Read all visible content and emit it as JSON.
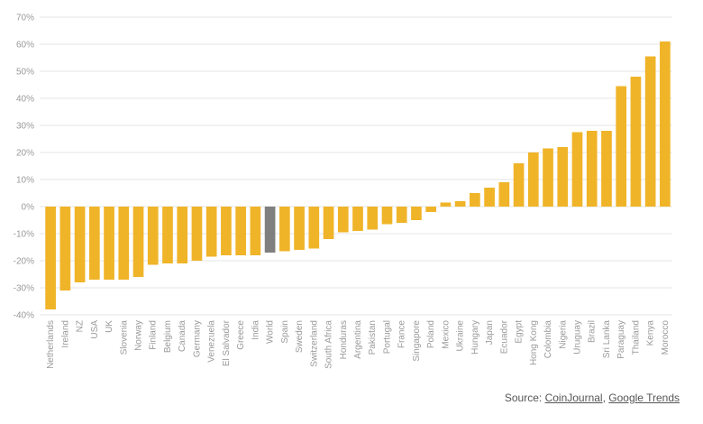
{
  "chart_data": {
    "type": "bar",
    "title": "",
    "xlabel": "",
    "ylabel": "",
    "ylim": [
      -40,
      70
    ],
    "yticks": [
      -40,
      -30,
      -20,
      -10,
      0,
      10,
      20,
      30,
      40,
      50,
      60,
      70
    ],
    "ytick_suffix": "%",
    "grid": true,
    "categories": [
      "Netherlands",
      "Ireland",
      "NZ",
      "USA",
      "UK",
      "Slovenia",
      "Norway",
      "Finland",
      "Belgium",
      "Canada",
      "Germany",
      "Venezuela",
      "El Salvador",
      "Greece",
      "India",
      "World",
      "Spain",
      "Sweden",
      "Switzerland",
      "South Africa",
      "Honduras",
      "Argentina",
      "Pakistan",
      "Portugal",
      "France",
      "Singapore",
      "Poland",
      "Mexico",
      "Ukraine",
      "Hungary",
      "Japan",
      "Ecuador",
      "Egypt",
      "Hong Kong",
      "Colombia",
      "Nigeria",
      "Uruguay",
      "Brazil",
      "Sri Lanka",
      "Paraguay",
      "Thailand",
      "Kenya",
      "Morocco"
    ],
    "values": [
      -38,
      -31,
      -28,
      -27,
      -27,
      -27,
      -26,
      -21.5,
      -21,
      -21,
      -20,
      -18.5,
      -18,
      -18,
      -18,
      -17,
      -16.5,
      -16,
      -15.5,
      -12,
      -9.5,
      -9,
      -8.5,
      -6.5,
      -6,
      -5,
      -2,
      1.5,
      2,
      5,
      7,
      9,
      16,
      20,
      21.5,
      22,
      27.5,
      28,
      28,
      44.5,
      48,
      55.5,
      61
    ],
    "colors": {
      "default": "#f0b429",
      "highlight": "#7f7f7f"
    },
    "highlight": "World"
  },
  "source": {
    "prefix": "Source: ",
    "link1": "CoinJournal",
    "separator": ", ",
    "link2": "Google Trends"
  }
}
